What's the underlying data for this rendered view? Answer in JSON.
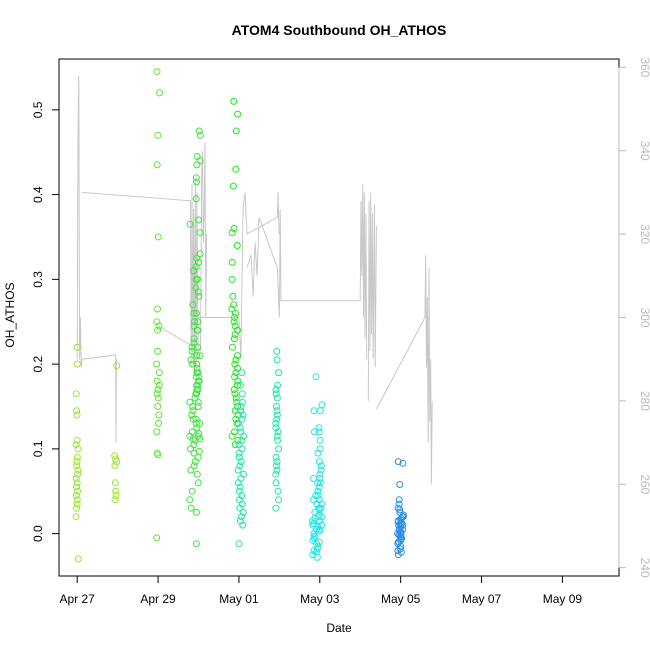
{
  "chart_data": {
    "type": "scatter",
    "title": "ATOM4 Southbound OH_ATHOS",
    "xlabel": "Date",
    "ylabel": "OH_ATHOS",
    "x_ticks": [
      "Apr 27",
      "Apr 29",
      "May 01",
      "May 03",
      "May 05",
      "May 07",
      "May 09"
    ],
    "xlim": [
      -0.45,
      13.4
    ],
    "ylim": [
      -0.05,
      0.56
    ],
    "y_ticks": [
      0.0,
      0.1,
      0.2,
      0.3,
      0.4,
      0.5
    ],
    "y2lim": [
      238,
      362
    ],
    "y2_ticks": [
      240,
      260,
      280,
      300,
      320,
      340,
      360
    ],
    "grid": false,
    "legend": "none",
    "colors": {
      "point_lime": "#9be632",
      "point_green": "#3ce63c",
      "point_bright_green": "#22e822",
      "point_teal": "#22e6a5",
      "point_cyan": "#22e6e6",
      "point_blue": "#2a8fe6",
      "altitude_line": "#c8c8c8",
      "right_axis": "#bbbbbb"
    },
    "point_groups": [
      {
        "color": "#9be632",
        "x_center": 0.0,
        "jitter": 0.03,
        "values": [
          0.22,
          0.2,
          0.165,
          0.145,
          0.14,
          0.11,
          0.105,
          0.1,
          0.09,
          0.085,
          0.08,
          0.075,
          0.07,
          0.065,
          0.06,
          0.055,
          0.05,
          0.045,
          0.04,
          0.035,
          0.03,
          0.02,
          -0.03
        ]
      },
      {
        "color": "#9be632",
        "x_center": 0.95,
        "jitter": 0.03,
        "values": [
          0.198,
          0.092,
          0.088,
          0.085,
          0.08,
          0.06,
          0.05,
          0.045,
          0.04
        ]
      },
      {
        "color": "#5fe632",
        "x_center": 2.0,
        "jitter": 0.04,
        "values": [
          0.545,
          0.52,
          0.47,
          0.435,
          0.35,
          0.265,
          0.25,
          0.245,
          0.24,
          0.215,
          0.2,
          0.19,
          0.18,
          0.175,
          0.17,
          0.165,
          0.16,
          0.15,
          0.14,
          0.13,
          0.12,
          0.095,
          0.093,
          -0.005
        ]
      },
      {
        "color": "#3ce63c",
        "x_center": 2.9,
        "jitter": 0.12,
        "values": [
          0.365,
          0.31,
          0.3,
          0.29,
          0.28,
          0.27,
          0.26,
          0.25,
          0.245,
          0.24,
          0.23,
          0.225,
          0.22,
          0.215,
          0.21,
          0.205,
          0.2,
          0.195,
          0.19,
          0.185,
          0.18,
          0.175,
          0.17,
          0.165,
          0.16,
          0.155,
          0.15,
          0.145,
          0.14,
          0.135,
          0.13,
          0.125,
          0.12,
          0.118,
          0.115,
          0.112,
          0.11,
          0.105,
          0.1,
          0.097,
          0.095,
          0.09,
          0.085,
          0.08,
          0.075,
          0.07,
          0.06,
          0.05,
          0.04,
          0.03,
          0.025,
          -0.012
        ]
      },
      {
        "color": "#3ce63c",
        "x_center": 3.0,
        "jitter": 0.06,
        "values": [
          0.475,
          0.47,
          0.445,
          0.44,
          0.435,
          0.42,
          0.415,
          0.395,
          0.37,
          0.355,
          0.33,
          0.325,
          0.32,
          0.315,
          0.3,
          0.285,
          0.26,
          0.25,
          0.24,
          0.22,
          0.21,
          0.2,
          0.19,
          0.185,
          0.18,
          0.175,
          0.17,
          0.165,
          0.155,
          0.15,
          0.135,
          0.13,
          0.115,
          0.112
        ]
      },
      {
        "color": "#22e822",
        "x_center": 3.9,
        "jitter": 0.08,
        "values": [
          0.51,
          0.495,
          0.475,
          0.43,
          0.41,
          0.36,
          0.355,
          0.34,
          0.32,
          0.3,
          0.28,
          0.27,
          0.265,
          0.26,
          0.255,
          0.25,
          0.245,
          0.24,
          0.235,
          0.23,
          0.22,
          0.21,
          0.205,
          0.2,
          0.195,
          0.19,
          0.185,
          0.18,
          0.175,
          0.17,
          0.165,
          0.16,
          0.155,
          0.15,
          0.145,
          0.14,
          0.135,
          0.13,
          0.12,
          0.115,
          0.11,
          0.105
        ]
      },
      {
        "color": "#22e6a5",
        "x_center": 4.05,
        "jitter": 0.07,
        "values": [
          0.19,
          0.175,
          0.165,
          0.155,
          0.15,
          0.145,
          0.14,
          0.135,
          0.13,
          0.125,
          0.12,
          0.115,
          0.11,
          0.105,
          0.1,
          0.095,
          0.09,
          0.085,
          0.08,
          0.075,
          0.07,
          0.065,
          0.06,
          0.055,
          0.05,
          0.045,
          0.04,
          0.035,
          0.03,
          0.025,
          0.02,
          0.015,
          0.01,
          -0.012
        ]
      },
      {
        "color": "#22e6a5",
        "x_center": 4.95,
        "jitter": 0.04,
        "values": [
          0.215,
          0.205,
          0.19,
          0.175,
          0.17,
          0.165,
          0.16,
          0.15,
          0.145,
          0.14,
          0.135,
          0.13,
          0.125,
          0.12,
          0.115,
          0.11,
          0.1,
          0.09,
          0.085,
          0.08,
          0.075,
          0.07,
          0.06,
          0.05,
          0.04,
          0.03
        ]
      },
      {
        "color": "#22e6e6",
        "x_center": 5.9,
        "jitter": 0.1,
        "values": [
          0.185,
          0.145,
          0.12,
          0.065,
          0.06,
          0.045,
          0.04,
          0.035,
          0.03,
          0.028,
          0.025,
          0.022,
          0.02,
          0.018,
          0.015,
          0.012,
          0.01,
          0.008,
          0.005,
          0.003,
          0.0,
          -0.003,
          -0.005,
          -0.008,
          -0.01,
          -0.012,
          -0.015,
          -0.018,
          -0.02,
          -0.022,
          -0.025,
          -0.028
        ]
      },
      {
        "color": "#22e6e6",
        "x_center": 6.0,
        "jitter": 0.06,
        "values": [
          0.152,
          0.145,
          0.125,
          0.12,
          0.11,
          0.1,
          0.095,
          0.085,
          0.08,
          0.075,
          0.07,
          0.065,
          0.06,
          0.055,
          0.05,
          0.045,
          0.04,
          0.035,
          0.03,
          0.02,
          0.015,
          0.01,
          0.005
        ]
      },
      {
        "color": "#2a8fe6",
        "x_center": 8.0,
        "jitter": 0.07,
        "values": [
          0.085,
          0.083,
          0.058,
          0.04,
          0.035,
          0.03,
          0.028,
          0.025,
          0.022,
          0.02,
          0.018,
          0.016,
          0.014,
          0.012,
          0.01,
          0.008,
          0.006,
          0.004,
          0.002,
          0.0,
          -0.002,
          -0.004,
          -0.006,
          -0.008,
          -0.01,
          -0.012,
          -0.015,
          -0.018,
          -0.02,
          -0.022,
          -0.025,
          0.015,
          0.005,
          -0.003,
          0.012,
          0.02,
          0.01,
          -0.01,
          0.0,
          0.005
        ]
      }
    ],
    "altitude_series": {
      "axis": "right",
      "segments": [
        {
          "x": [
            0.0,
            0.02,
            0.04,
            0.06,
            0.08,
            0.1,
            0.12,
            0.95,
            0.96,
            0.97
          ],
          "y": [
            290,
            345,
            358,
            290,
            300,
            288,
            290,
            291,
            270,
            290
          ]
        },
        {
          "x": [
            0.12,
            2.8,
            2.82,
            2.84,
            2.86,
            2.88,
            2.9,
            2.92,
            2.94,
            2.96,
            2.98,
            3.0
          ],
          "y": [
            330,
            328,
            288,
            332,
            290,
            326,
            286,
            333,
            286,
            330,
            300,
            290
          ]
        },
        {
          "x": [
            2.0,
            3.05,
            3.08,
            3.1,
            3.12,
            3.14,
            3.16,
            3.18,
            3.2
          ],
          "y": [
            298,
            292,
            335,
            340,
            318,
            325,
            342,
            300,
            320
          ]
        },
        {
          "x": [
            3.0,
            4.0,
            4.05,
            4.1,
            4.15,
            4.2,
            4.95,
            4.97,
            4.99
          ],
          "y": [
            300,
            300,
            290,
            326,
            330,
            320,
            324,
            330,
            320
          ]
        },
        {
          "x": [
            4.2,
            4.3,
            4.35,
            4.4,
            4.45,
            4.5,
            4.95,
            5.0,
            5.02,
            5.04
          ],
          "y": [
            312,
            315,
            305,
            318,
            310,
            324,
            312,
            300,
            326,
            304
          ]
        },
        {
          "x": [
            5.0,
            7.0,
            7.02,
            7.04,
            7.06,
            7.08,
            7.1,
            7.12,
            7.14,
            7.16
          ],
          "y": [
            304,
            304,
            328,
            310,
            332,
            300,
            330,
            295,
            325,
            290
          ]
        },
        {
          "x": [
            7.2,
            7.22,
            7.24,
            7.26,
            7.28,
            7.3,
            7.32,
            7.35,
            7.37,
            7.4
          ],
          "y": [
            280,
            328,
            292,
            330,
            296,
            325,
            290,
            327,
            288,
            322
          ]
        },
        {
          "x": [
            7.4,
            8.6,
            8.62,
            8.64,
            8.66,
            8.68,
            8.7,
            8.72,
            8.74,
            8.76,
            8.78
          ],
          "y": [
            278,
            300,
            315,
            288,
            305,
            270,
            312,
            275,
            290,
            260,
            280
          ]
        }
      ]
    }
  }
}
